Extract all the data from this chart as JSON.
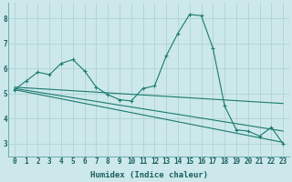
{
  "bg_color": "#cce8ea",
  "grid_color": "#aacdd0",
  "line_color": "#1a7a6e",
  "xlabel": "Humidex (Indice chaleur)",
  "xlim": [
    -0.5,
    23.5
  ],
  "ylim": [
    2.5,
    8.6
  ],
  "yticks": [
    3,
    4,
    5,
    6,
    7,
    8
  ],
  "xticks": [
    0,
    1,
    2,
    3,
    4,
    5,
    6,
    7,
    8,
    9,
    10,
    11,
    12,
    13,
    14,
    15,
    16,
    17,
    18,
    19,
    20,
    21,
    22,
    23
  ],
  "zigzag_x": [
    0,
    1,
    2,
    3,
    4,
    5,
    6,
    7,
    8,
    9,
    10,
    11,
    12,
    13,
    14,
    15,
    16,
    17,
    18,
    19,
    20,
    21,
    22,
    23
  ],
  "zigzag_y": [
    5.15,
    5.5,
    5.85,
    5.75,
    6.2,
    6.35,
    5.9,
    5.25,
    4.95,
    4.75,
    4.7,
    5.2,
    5.3,
    6.5,
    7.4,
    8.15,
    8.1,
    6.8,
    4.5,
    3.55,
    3.5,
    3.3,
    3.65,
    3.0
  ],
  "trend1_x": [
    0,
    23
  ],
  "trend1_y": [
    5.15,
    3.05
  ],
  "trend2_x": [
    0,
    23
  ],
  "trend2_y": [
    5.2,
    3.5
  ],
  "trend3_x": [
    0,
    23
  ],
  "trend3_y": [
    5.25,
    4.6
  ]
}
